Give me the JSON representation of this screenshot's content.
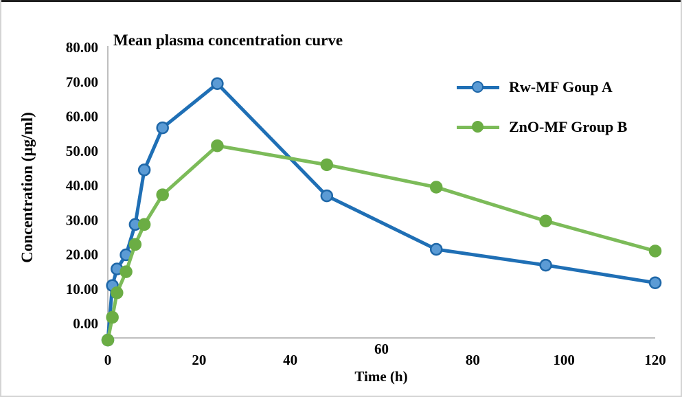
{
  "window": {
    "background": "#ffffff",
    "border_color": "#d4d4d4",
    "top_line_color": "#1f1f1f"
  },
  "chart_data": {
    "type": "line",
    "title": "Mean plasma concentration curve",
    "xlabel": "Time (h)",
    "ylabel": "Concentration (µg/ml)",
    "x": [
      0,
      1,
      2,
      4,
      6,
      8,
      12,
      24,
      48,
      72,
      96,
      120
    ],
    "series": [
      {
        "name": "Rw-MF Goup A",
        "line_color": "#1F6FB5",
        "marker_fill": "#5B9BD5",
        "marker_stroke": "#1E67A8",
        "values": [
          -4.8,
          11.0,
          15.8,
          19.9,
          28.7,
          44.5,
          56.7,
          69.5,
          37.0,
          21.5,
          16.9,
          11.8
        ]
      },
      {
        "name": "ZnO-MF Group B",
        "line_color": "#7CBB59",
        "marker_fill": "#6BAD44",
        "marker_stroke": "#6BAD44",
        "values": [
          -4.8,
          1.8,
          8.9,
          15.0,
          22.9,
          28.7,
          37.3,
          51.5,
          46.0,
          39.5,
          29.7,
          21.0
        ]
      }
    ],
    "y_ticks": [
      {
        "label": "0.00",
        "value": 0
      },
      {
        "label": "10.00",
        "value": 10
      },
      {
        "label": "20.00",
        "value": 20
      },
      {
        "label": "30.00",
        "value": 30
      },
      {
        "label": "40.00",
        "value": 40
      },
      {
        "label": "50.00",
        "value": 50
      },
      {
        "label": "60.00",
        "value": 60
      },
      {
        "label": "70.00",
        "value": 70
      },
      {
        "label": "80.00",
        "value": 80
      }
    ],
    "x_ticks": [
      {
        "label": "0",
        "t": 0,
        "raised": false
      },
      {
        "label": "20",
        "t": 20,
        "raised": false
      },
      {
        "label": "40",
        "t": 40,
        "raised": false
      },
      {
        "label": "60",
        "t": 60,
        "raised": true
      },
      {
        "label": "80",
        "t": 80,
        "raised": false
      },
      {
        "label": "100",
        "t": 100,
        "raised": false
      },
      {
        "label": "120",
        "t": 120,
        "raised": false
      }
    ],
    "xlim": [
      0,
      120
    ],
    "ylim": [
      -4.4,
      80
    ],
    "grid": false,
    "legend_position": "upper-right-inside",
    "axis_color": "#BFBFBF"
  }
}
